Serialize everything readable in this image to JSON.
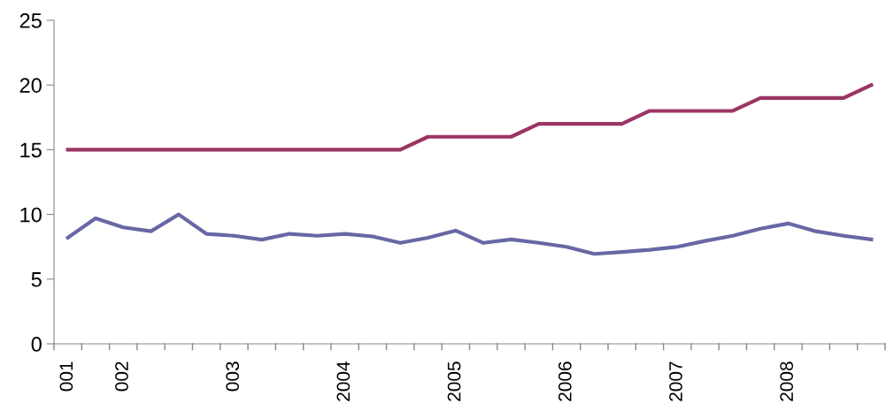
{
  "chart_data": {
    "type": "line",
    "categories": [
      "001",
      null,
      "002",
      null,
      null,
      null,
      "003",
      null,
      null,
      null,
      "2004",
      null,
      null,
      null,
      "2005",
      null,
      null,
      null,
      "2006",
      null,
      null,
      null,
      "2007",
      null,
      null,
      null,
      "2008",
      null,
      null,
      null
    ],
    "series": [
      {
        "color": "#9b3565",
        "values": [
          15,
          15,
          15,
          15,
          15,
          15,
          15,
          15,
          15,
          15,
          15,
          15,
          15,
          16,
          16,
          16,
          16,
          17,
          17,
          17,
          17,
          18,
          18,
          18,
          18,
          19,
          19,
          19,
          19,
          20
        ]
      },
      {
        "color": "#6867a5",
        "values": [
          8.2,
          9.7,
          9.0,
          8.7,
          10.0,
          8.5,
          8.35,
          8.05,
          8.5,
          8.35,
          8.5,
          8.3,
          7.8,
          8.2,
          8.75,
          7.8,
          8.07,
          7.8,
          7.5,
          6.95,
          7.1,
          7.27,
          7.5,
          7.95,
          8.35,
          8.9,
          9.3,
          8.7,
          8.35,
          8.07
        ]
      }
    ],
    "ylim": [
      0,
      25
    ],
    "yticks": [
      0,
      5,
      10,
      15,
      20,
      25
    ],
    "grid": false,
    "legend": false,
    "marker": "none",
    "line_style": "solid"
  }
}
